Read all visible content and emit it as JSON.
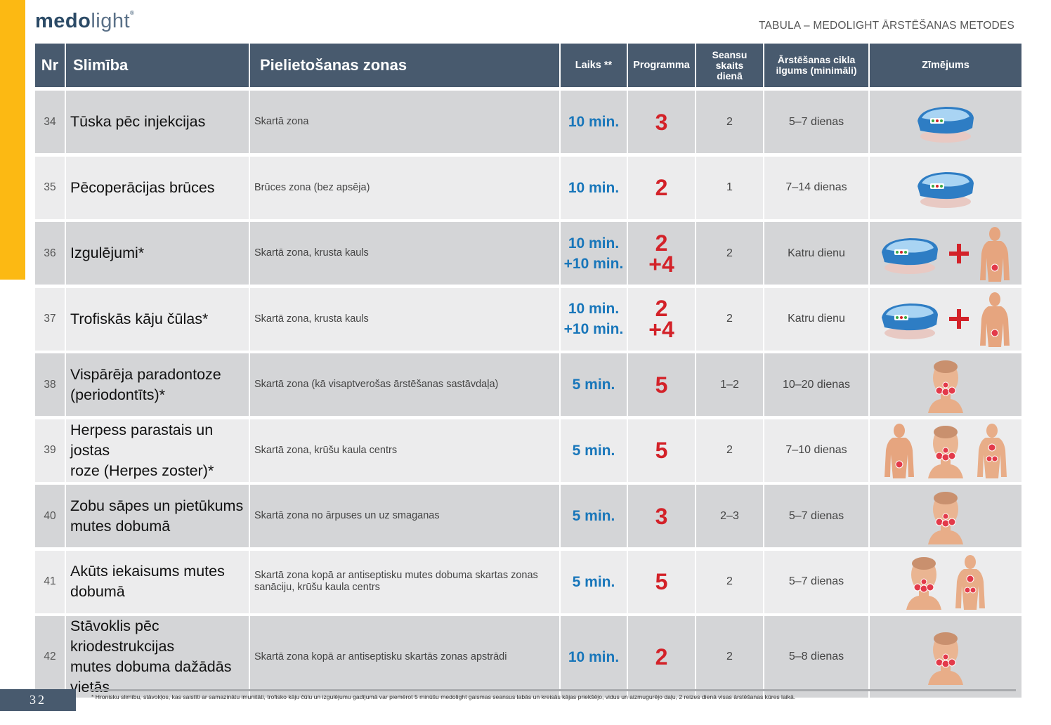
{
  "brand": {
    "logo_bold": "medo",
    "logo_light": "light"
  },
  "doc_title": "TABULA – MEDOLIGHT ĀRSTĒŠANAS METODES",
  "header": {
    "nr": "Nr",
    "slimiba": "Slimība",
    "zonas": "Pielietošanas zonas",
    "laiks": "Laiks **",
    "programma": "Programma",
    "seansu_1": "Seansu",
    "seansu_2": "skaits",
    "seansu_3": "dienā",
    "cikla_1": "Ārstēšanas cikla",
    "cikla_2": "ilgums (minimāli)",
    "zimejums": "Zīmējums"
  },
  "rows": [
    {
      "nr": "34",
      "slimiba": [
        "Tūska pēc injekcijas"
      ],
      "zona": [
        "Skartā zona"
      ],
      "laiks": [
        "10 min."
      ],
      "programma": [
        "3"
      ],
      "seansi": "2",
      "cikls": "5–7 dienas",
      "images": [
        "device-image"
      ]
    },
    {
      "nr": "35",
      "slimiba": [
        "Pēcoperācijas brūces"
      ],
      "zona": [
        "Brūces zona (bez apsēja)"
      ],
      "laiks": [
        "10 min."
      ],
      "programma": [
        "2"
      ],
      "seansi": "1",
      "cikls": "7–14 dienas",
      "images": [
        "device-image"
      ]
    },
    {
      "nr": "36",
      "slimiba": [
        "Izgulējumi*"
      ],
      "zona": [
        "Skartā zona, krusta kauls"
      ],
      "laiks": [
        "10 min.",
        "+10 min."
      ],
      "programma": [
        "2",
        "+4"
      ],
      "seansi": "2",
      "cikls": "Katru dienu",
      "images": [
        "device-image",
        "plus-icon",
        "body-back-image"
      ]
    },
    {
      "nr": "37",
      "slimiba": [
        "Trofiskās kāju čūlas*"
      ],
      "zona": [
        "Skartā zona, krusta kauls"
      ],
      "laiks": [
        "10 min.",
        "+10 min."
      ],
      "programma": [
        "2",
        "+4"
      ],
      "seansi": "2",
      "cikls": "Katru dienu",
      "images": [
        "device-image",
        "plus-icon",
        "body-back-image"
      ]
    },
    {
      "nr": "38",
      "slimiba": [
        "Vispārēja paradontoze",
        "(periodontīts)*"
      ],
      "zona": [
        "Skartā zona (kā visaptverošas ārstēšanas sastāvdaļa)"
      ],
      "laiks": [
        "5 min."
      ],
      "programma": [
        "5"
      ],
      "seansi": "1–2",
      "cikls": "10–20 dienas",
      "images": [
        "face-image"
      ]
    },
    {
      "nr": "39",
      "slimiba": [
        "Herpess parastais un jostas",
        "roze (Herpes zoster)*"
      ],
      "zona": [
        "Skartā zona, krūšu kaula centrs"
      ],
      "laiks": [
        "5 min."
      ],
      "programma": [
        "5"
      ],
      "seansi": "2",
      "cikls": "7–10 dienas",
      "images": [
        "body-back-image",
        "face-image",
        "body-front-image"
      ]
    },
    {
      "nr": "40",
      "slimiba": [
        "Zobu sāpes un pietūkums",
        "mutes dobumā"
      ],
      "zona": [
        "Skartā zona no ārpuses un uz smaganas"
      ],
      "laiks": [
        "5 min."
      ],
      "programma": [
        "3"
      ],
      "seansi": "2–3",
      "cikls": "5–7 dienas",
      "images": [
        "face-image"
      ]
    },
    {
      "nr": "41",
      "slimiba": [
        "Akūts iekaisums mutes",
        "dobumā"
      ],
      "zona": [
        "Skartā zona kopā ar antiseptisku mutes dobuma skartas zonas",
        "sanāciju, krūšu kaula centrs"
      ],
      "laiks": [
        "5 min."
      ],
      "programma": [
        "5"
      ],
      "seansi": "2",
      "cikls": "5–7 dienas",
      "images": [
        "face-image",
        "body-front-image"
      ]
    },
    {
      "nr": "42",
      "slimiba": [
        "Stāvoklis pēc kriodestrukcijas",
        "mutes dobuma dažādās",
        "vietās"
      ],
      "zona": [
        "Skartā zona kopā ar antiseptisku skartās zonas apstrādi"
      ],
      "laiks": [
        "10 min."
      ],
      "programma": [
        "2"
      ],
      "seansi": "2",
      "cikls": "5–8 dienas",
      "images": [
        "face-image"
      ]
    }
  ],
  "page_number": "32",
  "footnote": "* Hronisku slimību, stāvokļos, kas saistīti ar samazinātu imunitāti, trofisko kāju čūlu un izgulējumu gadījumā var piemērot 5 minūšu medolight gaismas seansus labās un kreisās kājas priekšējo, vidus un aizmugurējo daļu, 2 reizes dienā visas ārstēšanas kūres laikā.",
  "colors": {
    "accent_yellow": "#fcb913",
    "header_slate": "#485a6e",
    "time_blue": "#1876ba",
    "program_red": "#d32229"
  }
}
